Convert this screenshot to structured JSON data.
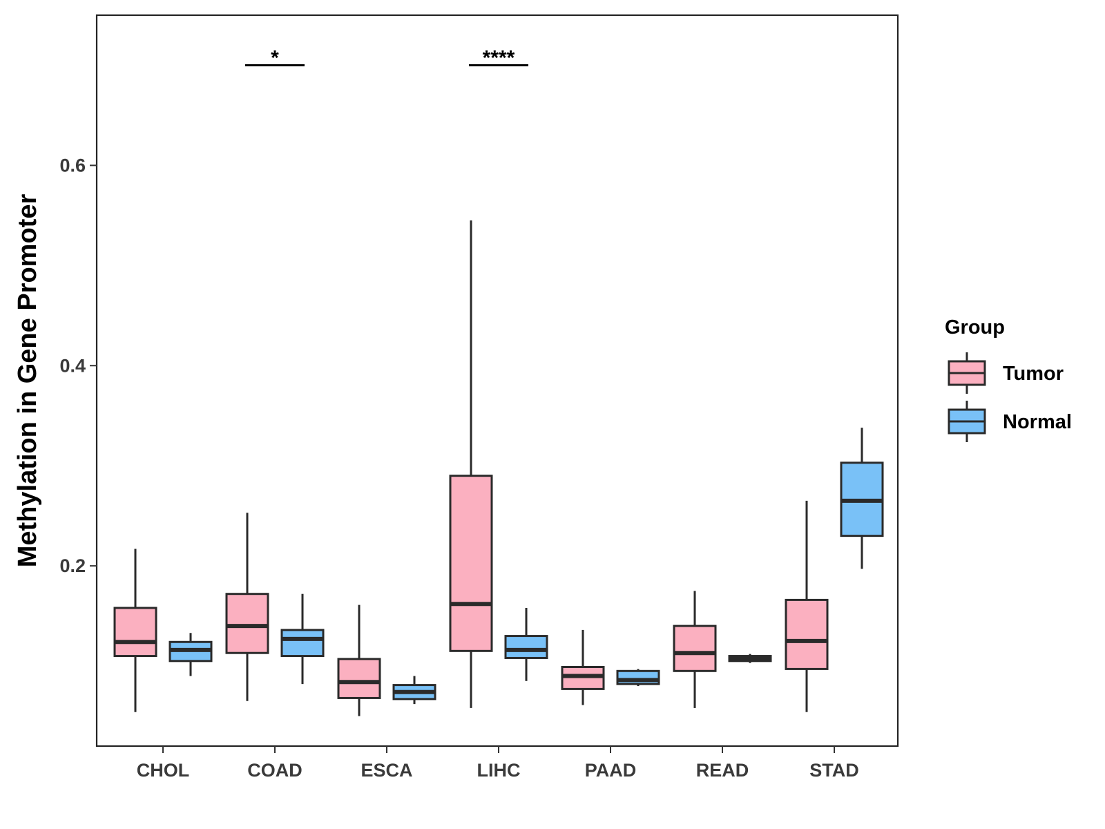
{
  "chart_data": {
    "type": "boxplot",
    "title": "",
    "xlabel": "",
    "ylabel": "Methylation in Gene Promoter",
    "ylim": [
      0.02,
      0.75
    ],
    "yticks": [
      0.2,
      0.4,
      0.6
    ],
    "ytick_labels": [
      "0.2",
      "0.4",
      "0.6"
    ],
    "categories": [
      "CHOL",
      "COAD",
      "ESCA",
      "LIHC",
      "PAAD",
      "READ",
      "STAD"
    ],
    "legend": {
      "title": "Group",
      "position": "right",
      "entries": [
        {
          "name": "Tumor",
          "color": "#fbb0c0"
        },
        {
          "name": "Normal",
          "color": "#79c1f7"
        }
      ]
    },
    "series": [
      {
        "name": "Tumor",
        "color": "#fbb0c0",
        "boxes": [
          {
            "min": 0.054,
            "q1": 0.11,
            "median": 0.124,
            "q3": 0.158,
            "max": 0.217
          },
          {
            "min": 0.065,
            "q1": 0.113,
            "median": 0.14,
            "q3": 0.172,
            "max": 0.253
          },
          {
            "min": 0.05,
            "q1": 0.068,
            "median": 0.084,
            "q3": 0.107,
            "max": 0.161
          },
          {
            "min": 0.058,
            "q1": 0.115,
            "median": 0.162,
            "q3": 0.29,
            "max": 0.545
          },
          {
            "min": 0.061,
            "q1": 0.077,
            "median": 0.09,
            "q3": 0.099,
            "max": 0.136
          },
          {
            "min": 0.058,
            "q1": 0.095,
            "median": 0.113,
            "q3": 0.14,
            "max": 0.175
          },
          {
            "min": 0.054,
            "q1": 0.097,
            "median": 0.125,
            "q3": 0.166,
            "max": 0.265
          }
        ]
      },
      {
        "name": "Normal",
        "color": "#79c1f7",
        "boxes": [
          {
            "min": 0.09,
            "q1": 0.105,
            "median": 0.116,
            "q3": 0.124,
            "max": 0.133
          },
          {
            "min": 0.082,
            "q1": 0.11,
            "median": 0.127,
            "q3": 0.136,
            "max": 0.172
          },
          {
            "min": 0.062,
            "q1": 0.067,
            "median": 0.074,
            "q3": 0.081,
            "max": 0.09
          },
          {
            "min": 0.085,
            "q1": 0.108,
            "median": 0.116,
            "q3": 0.13,
            "max": 0.158
          },
          {
            "min": 0.08,
            "q1": 0.082,
            "median": 0.086,
            "q3": 0.095,
            "max": 0.097
          },
          {
            "min": 0.103,
            "q1": 0.105,
            "median": 0.107,
            "q3": 0.11,
            "max": 0.112
          },
          {
            "min": 0.197,
            "q1": 0.23,
            "median": 0.265,
            "q3": 0.303,
            "max": 0.338
          }
        ]
      }
    ],
    "annotations": [
      {
        "category": "COAD",
        "label": "*",
        "y": 0.7
      },
      {
        "category": "LIHC",
        "label": "****",
        "y": 0.7
      }
    ]
  }
}
